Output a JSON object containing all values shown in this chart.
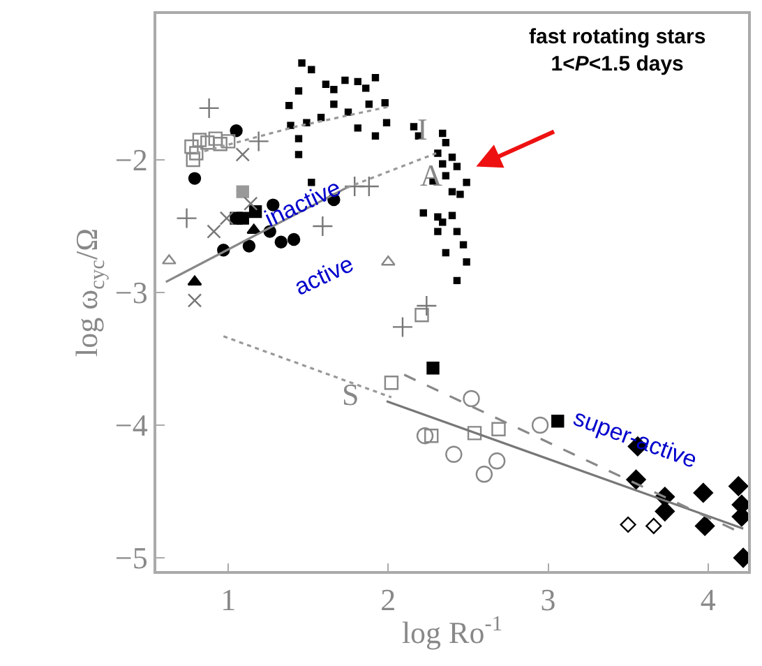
{
  "chart_data": {
    "type": "scatter",
    "xlabel": "log Ro$^{-1}$",
    "ylabel": "log ω$_{cyc}$/Ω",
    "xlim": [
      0.55,
      4.25
    ],
    "ylim": [
      -5.1,
      -0.9
    ],
    "xticks": [
      1,
      2,
      3,
      4
    ],
    "yticks": [
      -5,
      -4,
      -3,
      -2
    ],
    "series": [
      {
        "type": "scatter",
        "marker": "circle",
        "color": "#000000",
        "x": [
          1.05,
          0.79,
          1.28,
          1.66,
          0.97,
          1.13,
          1.26,
          1.33,
          1.41
        ],
        "values": [
          -1.78,
          -2.14,
          -2.34,
          -2.3,
          -2.68,
          -2.65,
          -2.54,
          -2.62,
          -2.6
        ]
      },
      {
        "type": "scatter",
        "marker": "square",
        "color": "#000000",
        "x": [
          1.05,
          1.17,
          1.09,
          2.28,
          3.06
        ],
        "values": [
          -2.44,
          -2.39,
          -2.44,
          -3.57,
          -3.97
        ]
      },
      {
        "type": "scatter",
        "marker": "triangle",
        "color": "#000000",
        "x": [
          0.79,
          1.16
        ],
        "values": [
          -2.92,
          -2.53
        ]
      },
      {
        "type": "scatter",
        "marker": "square",
        "color": "#999999",
        "x": [
          1.09
        ],
        "values": [
          -2.24
        ]
      },
      {
        "type": "scatter",
        "marker": "square-open",
        "color": "#888888",
        "x": [
          0.77,
          0.82,
          0.87,
          0.92,
          0.8,
          0.95,
          0.78,
          1.0,
          2.27,
          2.54,
          2.69,
          2.02,
          2.21
        ],
        "values": [
          -1.9,
          -1.85,
          -1.87,
          -1.84,
          -1.95,
          -1.88,
          -2.0,
          -1.86,
          -4.08,
          -4.06,
          -4.03,
          -3.68,
          -3.17
        ]
      },
      {
        "type": "scatter",
        "marker": "circle-open",
        "color": "#888888",
        "x": [
          2.52,
          2.41,
          2.6,
          2.68,
          2.95,
          2.23
        ],
        "values": [
          -3.8,
          -4.22,
          -4.37,
          -4.27,
          -4.0,
          -4.08
        ]
      },
      {
        "type": "scatter",
        "marker": "cross",
        "color": "#777777",
        "x": [
          0.88,
          1.19,
          0.74,
          1.59,
          1.79,
          1.88,
          2.09,
          2.24
        ],
        "values": [
          -1.61,
          -1.86,
          -2.44,
          -2.5,
          -2.2,
          -2.2,
          -3.26,
          -3.1
        ]
      },
      {
        "type": "scatter",
        "marker": "x",
        "color": "#777777",
        "x": [
          1.09,
          0.91,
          1.14,
          0.79,
          0.99
        ],
        "values": [
          -1.96,
          -2.54,
          -2.33,
          -3.06,
          -2.44
        ]
      },
      {
        "type": "scatter",
        "marker": "triangle-open",
        "color": "#888888",
        "x": [
          0.63,
          2.0
        ],
        "values": [
          -2.76,
          -2.77
        ]
      },
      {
        "marker": "square",
        "color": "#000000",
        "x": [
          1.46,
          1.52,
          1.44,
          1.61,
          1.66,
          1.73,
          1.81,
          1.86,
          1.92,
          1.98,
          1.88,
          1.75,
          1.66,
          1.38,
          1.49,
          1.39,
          1.58,
          1.81,
          1.92,
          1.99,
          1.44,
          2.16,
          2.19,
          2.34,
          2.36,
          2.31,
          2.4,
          2.34,
          2.43,
          2.36,
          2.49,
          2.28,
          2.4,
          2.45,
          2.22,
          2.31,
          2.4,
          2.43,
          2.34,
          2.31,
          2.47,
          2.36,
          2.49,
          2.43,
          1.52,
          1.44
        ],
        "values": [
          -1.27,
          -1.32,
          -1.48,
          -1.43,
          -1.47,
          -1.4,
          -1.41,
          -1.46,
          -1.38,
          -1.57,
          -1.58,
          -1.64,
          -1.58,
          -1.59,
          -1.72,
          -1.74,
          -1.68,
          -1.76,
          -1.82,
          -1.72,
          -1.84,
          -1.75,
          -1.82,
          -1.8,
          -1.87,
          -1.95,
          -1.98,
          -2.03,
          -2.05,
          -2.12,
          -2.17,
          -2.16,
          -2.24,
          -2.26,
          -2.4,
          -2.43,
          -2.42,
          -2.54,
          -2.47,
          -2.54,
          -2.64,
          -2.7,
          -2.77,
          -2.91,
          -2.17,
          -1.96
        ]
      },
      {
        "type": "scatter",
        "marker": "diamond",
        "color": "#000000",
        "x": [
          3.56,
          3.55,
          3.73,
          3.73,
          3.97,
          3.98,
          4.19,
          4.21,
          4.21,
          4.22
        ],
        "values": [
          -4.16,
          -4.41,
          -4.54,
          -4.65,
          -4.51,
          -4.76,
          -4.46,
          -4.6,
          -4.69,
          -5.0
        ]
      },
      {
        "type": "scatter",
        "marker": "diamond-open",
        "color": "#000000",
        "x": [
          3.5,
          3.66
        ],
        "values": [
          -4.75,
          -4.76
        ]
      },
      {
        "type": "line",
        "line_style": "solid",
        "color": "#888888",
        "x": [
          0.61,
          1.74
        ],
        "values": [
          -2.92,
          -2.21
        ]
      },
      {
        "type": "line",
        "line_style": "dotted",
        "color": "#999999",
        "x": [
          1.74,
          2.3
        ],
        "values": [
          -2.21,
          -1.95
        ]
      },
      {
        "type": "line",
        "line_style": "dotted",
        "color": "#999999",
        "x": [
          0.8,
          1.42,
          2.0
        ],
        "values": [
          -1.95,
          -1.75,
          -1.6
        ]
      },
      {
        "type": "line",
        "line_style": "dotted",
        "color": "#999999",
        "x": [
          0.97,
          2.02
        ],
        "values": [
          -3.33,
          -3.79
        ]
      },
      {
        "type": "line",
        "line_style": "solid",
        "color": "#777777",
        "x": [
          1.99,
          4.22
        ],
        "values": [
          -3.82,
          -4.78
        ]
      },
      {
        "type": "line",
        "line_style": "dashed",
        "color": "#888888",
        "x": [
          2.1,
          4.22
        ],
        "values": [
          -3.62,
          -4.82
        ]
      }
    ],
    "annotations": [
      "inactive",
      "active",
      {
        "text": "super-active",
        "x": 3.55,
        "y": -4.1
      },
      "I",
      {
        "text": "A",
        "x": 2.27,
        "y": -2.12
      },
      "S",
      "fast rotating stars\n1<P<1.5 days"
    ]
  }
}
